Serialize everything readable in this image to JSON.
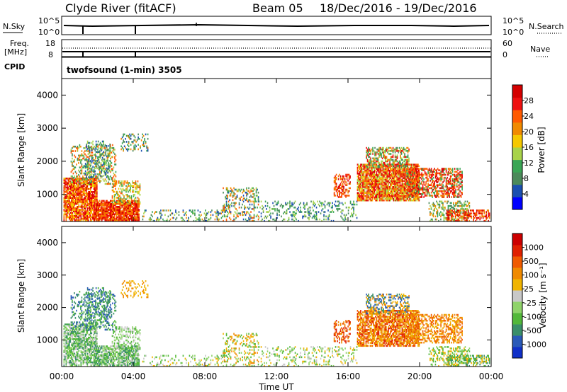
{
  "header": {
    "station": "Clyde River (fitACF)",
    "beam": "Beam 05",
    "date_range": "18/Dec/2016 - 19/Dec/2016"
  },
  "cpid_label": "twofsound (1-min) 3505",
  "chart_data": [
    {
      "type": "line",
      "name": "noise-panel",
      "left_label": "N.Sky",
      "right_label": "N.Search",
      "yticks_left": [
        "10^5",
        "10^0"
      ],
      "yticks_right": [
        "10^5",
        "10^0"
      ]
    },
    {
      "type": "line",
      "name": "frequency-panel",
      "left_label": "Freq. [MHz]",
      "right_label": "Nave",
      "cpid_label": "CPID",
      "yticks_left": [
        "18",
        "8"
      ],
      "yticks_right": [
        "60",
        "0"
      ],
      "ylim_left": [
        8,
        18
      ],
      "ylim_right": [
        0,
        60
      ],
      "freq_value": 10.5,
      "nave_value": 40
    },
    {
      "type": "heatmap",
      "name": "power-panel",
      "xlabel": "",
      "ylabel": "Slant Range [km]",
      "ylim": [
        180,
        4500
      ],
      "yticks": [
        1000,
        2000,
        3000,
        4000
      ],
      "xlim": [
        0,
        24
      ],
      "colorbar": {
        "label": "Power [dB]",
        "ticks": [
          "28",
          "24",
          "20",
          "16",
          "12",
          "8",
          "4"
        ],
        "colors": [
          "#0000ff",
          "#1a4fb0",
          "#4b8a5a",
          "#3aa655",
          "#a8d34a",
          "#f5c800",
          "#f08a00",
          "#ff5a00",
          "#ee1010",
          "#d40000"
        ]
      }
    },
    {
      "type": "heatmap",
      "name": "velocity-panel",
      "xlabel": "Time UT",
      "ylabel": "Slant Range [km]",
      "ylim": [
        180,
        4500
      ],
      "yticks": [
        1000,
        2000,
        3000,
        4000
      ],
      "xlim": [
        0,
        24
      ],
      "xticks": [
        "00:00",
        "04:00",
        "08:00",
        "12:00",
        "16:00",
        "20:00",
        "00:00"
      ],
      "colorbar": {
        "label": "Velocity [m s⁻¹]",
        "ticks": [
          "1000",
          "500",
          "100",
          "25",
          "-25",
          "-100",
          "-500",
          "-1000"
        ],
        "colors": [
          "#1030c8",
          "#2a5ab8",
          "#3a8f6a",
          "#52b83a",
          "#8fd36a",
          "#c8c8c8",
          "#f0b400",
          "#f08a00",
          "#f05a00",
          "#e02000",
          "#cc0000"
        ]
      }
    }
  ]
}
